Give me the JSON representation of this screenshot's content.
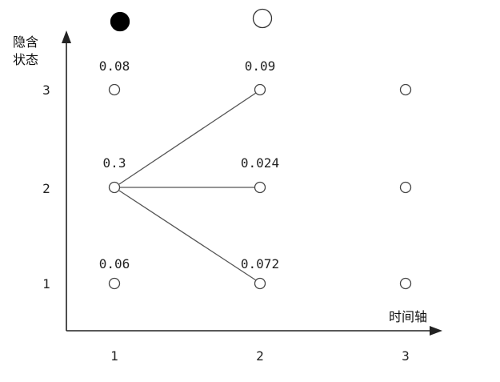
{
  "axes": {
    "y_label_line1": "隐含",
    "y_label_line2": "状态",
    "x_label": "时间轴",
    "x_ticks": [
      "1",
      "2",
      "3"
    ],
    "y_ticks": [
      "3",
      "2",
      "1"
    ]
  },
  "observations": [
    {
      "time": "1",
      "kind": "filled"
    },
    {
      "time": "2",
      "kind": "empty"
    }
  ],
  "nodes": [
    {
      "time": "1",
      "state": "3",
      "prob": "0.08"
    },
    {
      "time": "1",
      "state": "2",
      "prob": "0.3"
    },
    {
      "time": "1",
      "state": "1",
      "prob": "0.06"
    },
    {
      "time": "2",
      "state": "3",
      "prob": "0.09"
    },
    {
      "time": "2",
      "state": "2",
      "prob": "0.024"
    },
    {
      "time": "2",
      "state": "1",
      "prob": "0.072"
    },
    {
      "time": "3",
      "state": "3",
      "prob": ""
    },
    {
      "time": "3",
      "state": "2",
      "prob": ""
    },
    {
      "time": "3",
      "state": "1",
      "prob": ""
    }
  ],
  "edges": [
    {
      "from": {
        "time": "1",
        "state": "2"
      },
      "to": {
        "time": "2",
        "state": "3"
      }
    },
    {
      "from": {
        "time": "1",
        "state": "2"
      },
      "to": {
        "time": "2",
        "state": "2"
      }
    },
    {
      "from": {
        "time": "1",
        "state": "2"
      },
      "to": {
        "time": "2",
        "state": "1"
      }
    }
  ]
}
